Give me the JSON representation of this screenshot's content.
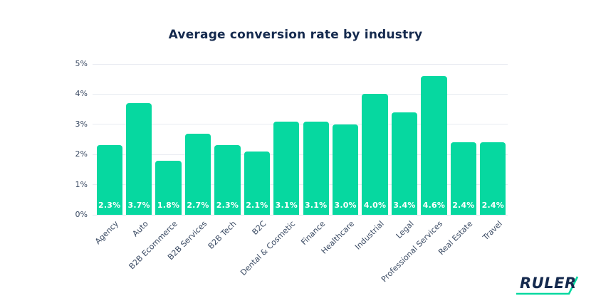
{
  "page": {
    "background": "#ffffff"
  },
  "title": "Average conversion rate by industry",
  "logo": {
    "text": "RULER"
  },
  "colors": {
    "bar": "#06d8a0",
    "title_navy": "#152a4e",
    "axis_label": "#3a4a63",
    "gridline": "#e9ecf2",
    "bar_value_label": "#ffffff",
    "logo_text": "#152a4e",
    "logo_swoosh": "#06d8a0"
  },
  "chart_data": {
    "type": "bar",
    "title": "Average conversion rate by industry",
    "categories": [
      "Agency",
      "Auto",
      "B2B Ecommerce",
      "B2B Services",
      "B2B Tech",
      "B2C",
      "Dental & Cosmetic",
      "Finance",
      "Healthcare",
      "Industrial",
      "Legal",
      "Professional Services",
      "Real Estate",
      "Travel"
    ],
    "values": [
      2.3,
      3.7,
      1.8,
      2.7,
      2.3,
      2.1,
      3.1,
      3.1,
      3.0,
      4.0,
      3.4,
      4.6,
      2.4,
      2.4
    ],
    "value_labels": [
      "2.3%",
      "3.7%",
      "1.8%",
      "2.7%",
      "2.3%",
      "2.1%",
      "3.1%",
      "3.1%",
      "3.0%",
      "4.0%",
      "3.4%",
      "4.6%",
      "2.4%",
      "2.4%"
    ],
    "xlabel": "",
    "ylabel": "",
    "ylim": [
      0,
      5
    ],
    "yticks": [
      "0%",
      "1%",
      "2%",
      "3%",
      "4%",
      "5%"
    ],
    "grid": true,
    "legend": false
  }
}
